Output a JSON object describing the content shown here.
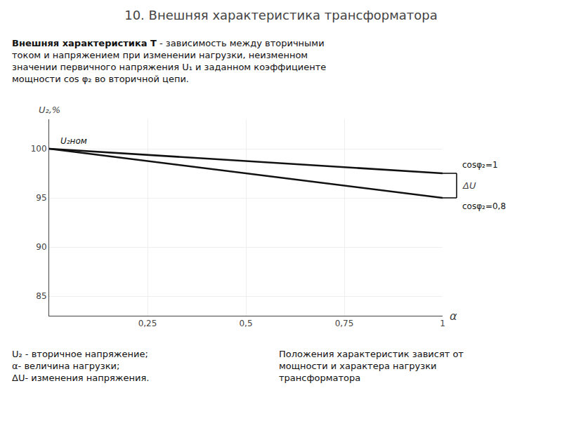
{
  "chart_data": {
    "type": "line",
    "title": "10. Внешняя характеристика трансформатора",
    "subtitle": [
      "Внешняя характеристика Т - зависимость между вторичными",
      "током и напряжением при изменении нагрузки, неизменном",
      "значении первичного напряжения U₁ и заданном коэффициенте",
      "мощности cos φ₂ во вторичной цепи."
    ],
    "x_label": "α",
    "y_label": "U₂,%",
    "x": [
      0,
      1
    ],
    "series": [
      {
        "name": "cosφ₂=1",
        "color": "#111111",
        "values": [
          100,
          97.5
        ]
      },
      {
        "name": "cosφ₂=0,8",
        "color": "#111111",
        "values": [
          100,
          95.0
        ]
      }
    ],
    "xlim": [
      0,
      1
    ],
    "ylim": [
      83,
      103
    ],
    "xticks": [
      {
        "value": 0.25,
        "label": "0,25"
      },
      {
        "value": 0.5,
        "label": "0,5"
      },
      {
        "value": 0.75,
        "label": "0,75"
      },
      1
    ],
    "yticks": [
      85,
      90,
      95,
      100
    ],
    "grid": true,
    "annotations": [
      "U₂ном",
      "ΔU"
    ],
    "notes": [
      "U₂ - вторичное напряжение;",
      "α- величина нагрузки;",
      "ΔU- изменения напряжения."
    ],
    "remark": [
      "Положения характеристик зависят от",
      "мощности и характера нагрузки",
      "трансформатора"
    ]
  }
}
